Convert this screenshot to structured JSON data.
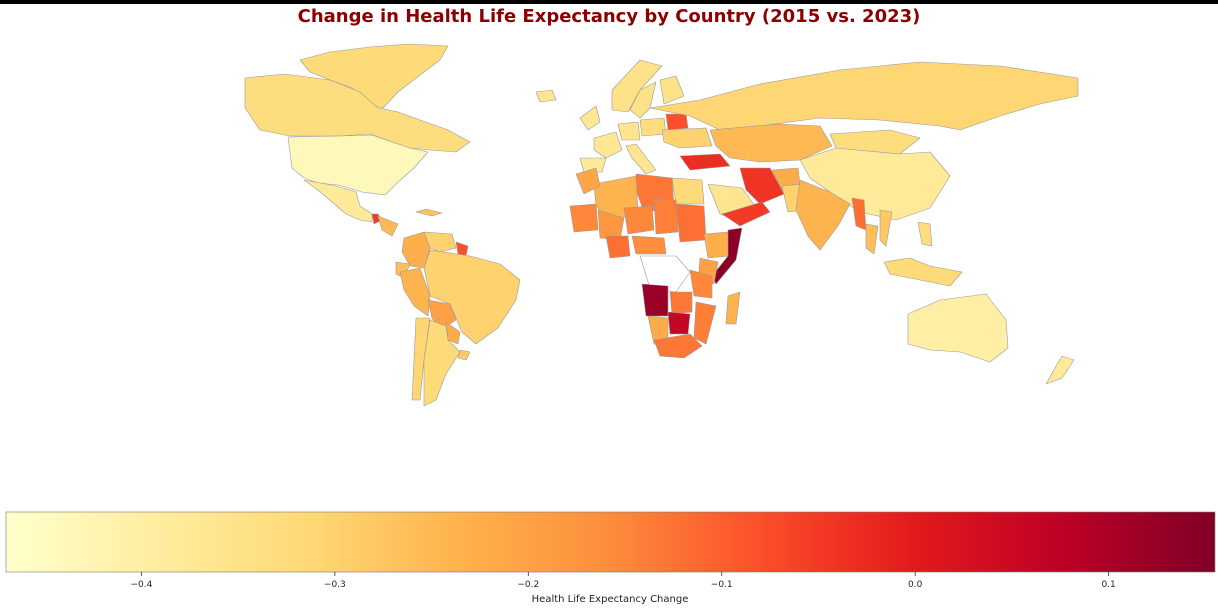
{
  "map": {
    "title": "Change in Health Life Expectancy by Country (2015 vs. 2023)",
    "title_color": "#8b0000",
    "colormap": "YlOrRd",
    "color_stops": [
      "#ffffcc",
      "#ffeda0",
      "#fed976",
      "#feb24c",
      "#fd8d3c",
      "#fc4e2a",
      "#e31a1c",
      "#bd0026",
      "#800026"
    ],
    "missing_data_color": "#ffffff",
    "border_color": "#9a9a9a"
  },
  "colorbar": {
    "label": "Health Life Expectancy Change",
    "min": -0.47,
    "max": 0.155,
    "ticks": [
      -0.4,
      -0.3,
      -0.2,
      -0.1,
      0.0,
      0.1
    ],
    "tick_labels": [
      "−0.4",
      "−0.3",
      "−0.2",
      "−0.1",
      "0.0",
      "0.1"
    ]
  },
  "chart_data": {
    "type": "choropleth",
    "title": "Change in Health Life Expectancy by Country (2015 vs. 2023)",
    "value_label": "Health Life Expectancy Change",
    "regions": [
      {
        "name": "Greenland",
        "value": -0.32
      },
      {
        "name": "Canada",
        "value": -0.33
      },
      {
        "name": "United States",
        "value": -0.44
      },
      {
        "name": "Mexico",
        "value": -0.38
      },
      {
        "name": "Guatemala",
        "value": -0.05
      },
      {
        "name": "Honduras",
        "value": -0.25
      },
      {
        "name": "Cuba",
        "value": -0.27
      },
      {
        "name": "Colombia",
        "value": -0.23
      },
      {
        "name": "Venezuela",
        "value": -0.3
      },
      {
        "name": "Guyana",
        "value": -0.08
      },
      {
        "name": "Ecuador",
        "value": -0.26
      },
      {
        "name": "Peru",
        "value": -0.24
      },
      {
        "name": "Brazil",
        "value": -0.3
      },
      {
        "name": "Bolivia",
        "value": -0.2
      },
      {
        "name": "Paraguay",
        "value": -0.22
      },
      {
        "name": "Chile",
        "value": -0.31
      },
      {
        "name": "Argentina",
        "value": -0.32
      },
      {
        "name": "Uruguay",
        "value": -0.28
      },
      {
        "name": "Iceland",
        "value": -0.36
      },
      {
        "name": "Norway",
        "value": -0.35
      },
      {
        "name": "Sweden",
        "value": -0.35
      },
      {
        "name": "Finland",
        "value": -0.35
      },
      {
        "name": "United Kingdom",
        "value": -0.37
      },
      {
        "name": "France",
        "value": -0.37
      },
      {
        "name": "Spain",
        "value": -0.38
      },
      {
        "name": "Germany",
        "value": -0.36
      },
      {
        "name": "Poland",
        "value": -0.33
      },
      {
        "name": "Belarus",
        "value": -0.08
      },
      {
        "name": "Ukraine",
        "value": -0.3
      },
      {
        "name": "Italy",
        "value": -0.36
      },
      {
        "name": "Russia",
        "value": -0.31
      },
      {
        "name": "Kazakhstan",
        "value": -0.25
      },
      {
        "name": "Mongolia",
        "value": -0.33
      },
      {
        "name": "China",
        "value": -0.38
      },
      {
        "name": "Turkey",
        "value": -0.03
      },
      {
        "name": "Iran",
        "value": -0.04
      },
      {
        "name": "Afghanistan",
        "value": -0.22
      },
      {
        "name": "Pakistan",
        "value": -0.3
      },
      {
        "name": "India",
        "value": -0.24
      },
      {
        "name": "Myanmar",
        "value": -0.12
      },
      {
        "name": "Thailand",
        "value": -0.26
      },
      {
        "name": "Vietnam",
        "value": -0.28
      },
      {
        "name": "Saudi Arabia",
        "value": -0.36
      },
      {
        "name": "Yemen",
        "value": -0.05
      },
      {
        "name": "Egypt",
        "value": -0.32
      },
      {
        "name": "Libya",
        "value": -0.13
      },
      {
        "name": "Algeria",
        "value": -0.24
      },
      {
        "name": "Morocco",
        "value": -0.21
      },
      {
        "name": "Mauritania",
        "value": -0.15
      },
      {
        "name": "Mali",
        "value": -0.18
      },
      {
        "name": "Niger",
        "value": -0.15
      },
      {
        "name": "Chad",
        "value": -0.14
      },
      {
        "name": "Sudan",
        "value": -0.12
      },
      {
        "name": "Ethiopia",
        "value": -0.23
      },
      {
        "name": "Somalia",
        "value": 0.14
      },
      {
        "name": "Kenya",
        "value": -0.2
      },
      {
        "name": "Nigeria",
        "value": -0.12
      },
      {
        "name": "Central African Republic",
        "value": -0.16
      },
      {
        "name": "DR Congo",
        "value": null
      },
      {
        "name": "Angola",
        "value": 0.12
      },
      {
        "name": "Zambia",
        "value": -0.13
      },
      {
        "name": "Tanzania",
        "value": -0.15
      },
      {
        "name": "Mozambique",
        "value": -0.14
      },
      {
        "name": "Namibia",
        "value": -0.22
      },
      {
        "name": "Botswana",
        "value": 0.06
      },
      {
        "name": "South Africa",
        "value": -0.13
      },
      {
        "name": "Madagascar",
        "value": -0.24
      },
      {
        "name": "Indonesia",
        "value": -0.32
      },
      {
        "name": "Philippines",
        "value": -0.33
      },
      {
        "name": "Australia",
        "value": -0.4
      },
      {
        "name": "New Zealand",
        "value": -0.38
      }
    ]
  }
}
